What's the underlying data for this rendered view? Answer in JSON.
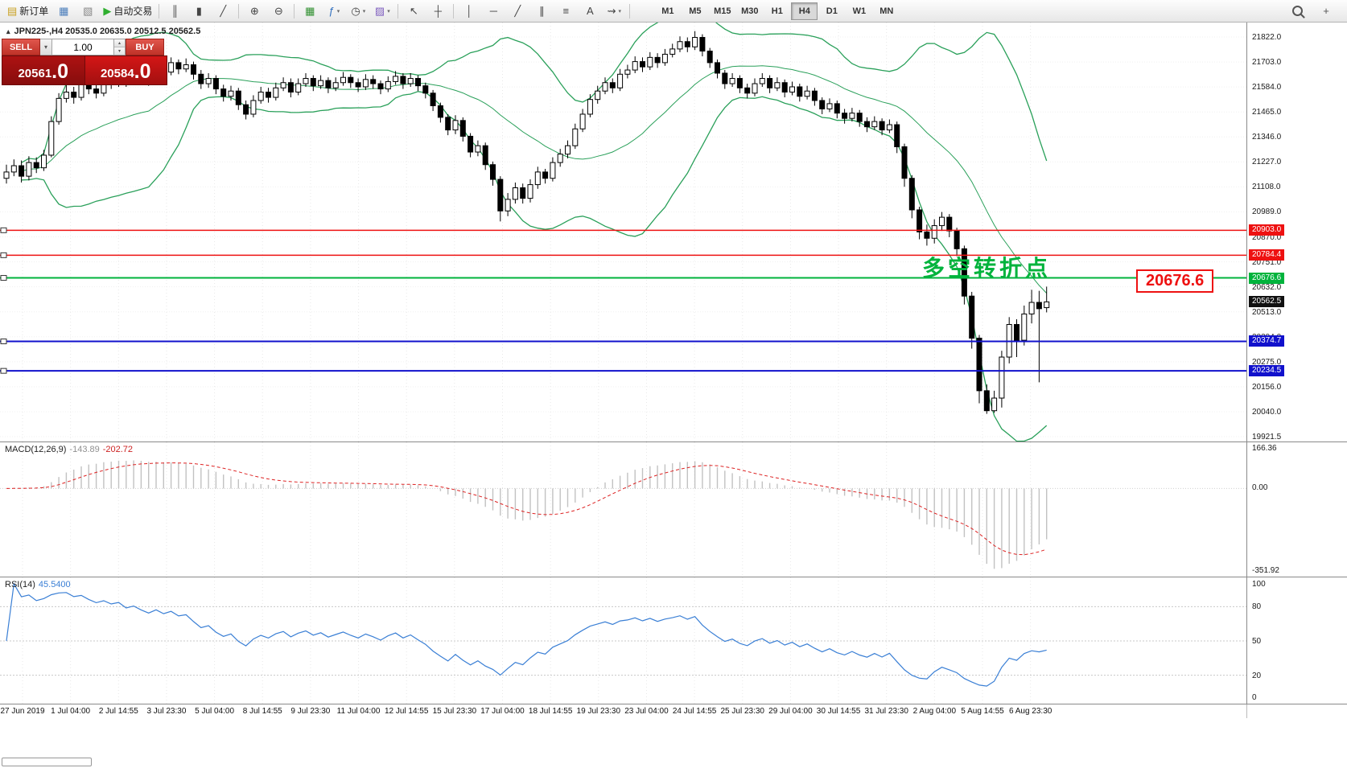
{
  "toolbar": {
    "items": [
      {
        "name": "new-order-button",
        "glyph": "▤",
        "color": "#c8a020",
        "label": "新订单"
      },
      {
        "name": "chart-window-button",
        "glyph": "▦",
        "color": "#4a7dbb"
      },
      {
        "name": "profiles-button",
        "glyph": "▧",
        "color": "#888888"
      },
      {
        "name": "autotrade-button",
        "glyph": "▶",
        "color": "#2faf2f",
        "label": "自动交易"
      },
      {
        "sep": true
      },
      {
        "name": "bar-chart-button",
        "glyph": "║",
        "color": "#444444"
      },
      {
        "name": "candlestick-chart-button",
        "glyph": "▮",
        "color": "#444444"
      },
      {
        "name": "line-chart-button",
        "glyph": "╱",
        "color": "#444444"
      },
      {
        "sep": true
      },
      {
        "name": "zoom-in-button",
        "glyph": "⊕",
        "color": "#444444"
      },
      {
        "name": "zoom-out-button",
        "glyph": "⊖",
        "color": "#444444"
      },
      {
        "sep": true
      },
      {
        "name": "tile-windows-button",
        "glyph": "▦",
        "color": "#2f8f2f"
      },
      {
        "name": "indicators-button",
        "glyph": "ƒ",
        "color": "#2f6fbf",
        "dropdown": true
      },
      {
        "name": "periods-button",
        "glyph": "◷",
        "color": "#444444",
        "dropdown": true
      },
      {
        "name": "templates-button",
        "glyph": "▨",
        "color": "#7f5fbf",
        "dropdown": true
      },
      {
        "sep": true
      },
      {
        "name": "cursor-button",
        "glyph": "↖",
        "color": "#444444"
      },
      {
        "name": "crosshair-button",
        "glyph": "┼",
        "color": "#444444"
      },
      {
        "sep": true
      },
      {
        "name": "vertical-line-button",
        "glyph": "│",
        "color": "#444444"
      },
      {
        "name": "horizontal-line-button",
        "glyph": "─",
        "color": "#444444"
      },
      {
        "name": "trendline-button",
        "glyph": "╱",
        "color": "#444444"
      },
      {
        "name": "channel-button",
        "glyph": "∥",
        "color": "#444444"
      },
      {
        "name": "fibonacci-button",
        "glyph": "≡",
        "color": "#444444"
      },
      {
        "name": "text-button",
        "glyph": "A",
        "color": "#444444"
      },
      {
        "name": "arrows-button",
        "glyph": "⇝",
        "color": "#444444",
        "dropdown": true
      },
      {
        "sep": true
      }
    ],
    "timeframes": [
      "M1",
      "M5",
      "M15",
      "M30",
      "H1",
      "H4",
      "D1",
      "W1",
      "MN"
    ],
    "active_timeframe": "H4",
    "right_items": [
      {
        "name": "search-button",
        "glyph": "MAG"
      },
      {
        "name": "quick-add-button",
        "glyph": "+",
        "color": "#555555"
      }
    ]
  },
  "order_panel": {
    "sell_label": "SELL",
    "buy_label": "BUY",
    "volume": "1.00",
    "sell_price": "20561.0",
    "buy_price": "20584.0",
    "dropdown_icon": "▾",
    "spin_up_icon": "▴",
    "spin_down_icon": "▾"
  },
  "chart": {
    "symbol_icon": "▴",
    "symbol_info": "JPN225-,H4  20535.0 20635.0 20512.5 20562.5",
    "annotation": "多空转折点",
    "annotation_color": "#00b33c",
    "callout": "20676.6",
    "axis_ticks": [
      "21822.0",
      "21703.0",
      "21584.0",
      "21465.0",
      "21346.0",
      "21227.0",
      "21108.0",
      "20989.0",
      "20870.0",
      "20751.0",
      "20632.0",
      "20513.0",
      "20394.0",
      "20275.0",
      "20156.0",
      "20040.0",
      "19921.5"
    ],
    "hlines": [
      {
        "price": 20903.0,
        "color": "#ee1111",
        "label": "20903.0",
        "width": 1.5
      },
      {
        "price": 20784.4,
        "color": "#ee1111",
        "label": "20784.4",
        "width": 1.5
      },
      {
        "price": 20676.6,
        "color": "#00b33c",
        "label": "20676.6",
        "width": 2
      },
      {
        "price": 20374.7,
        "color": "#1111cc",
        "label": "20374.7",
        "width": 2
      },
      {
        "price": 20234.5,
        "color": "#1111cc",
        "label": "20234.5",
        "width": 2
      }
    ],
    "current_price": {
      "value": 20562.5,
      "label": "20562.5",
      "bg": "#111111"
    },
    "time_labels": [
      "27 Jun 2019",
      "1 Jul 04:00",
      "2 Jul 14:55",
      "3 Jul 23:30",
      "5 Jul 04:00",
      "8 Jul 14:55",
      "9 Jul 23:30",
      "11 Jul 04:00",
      "12 Jul 14:55",
      "15 Jul 23:30",
      "17 Jul 04:00",
      "18 Jul 14:55",
      "19 Jul 23:30",
      "23 Jul 04:00",
      "24 Jul 14:55",
      "25 Jul 23:30",
      "29 Jul 04:00",
      "30 Jul 14:55",
      "31 Jul 23:30",
      "2 Aug 04:00",
      "5 Aug 14:55",
      "6 Aug 23:30"
    ]
  },
  "macd": {
    "name": "MACD(12,26,9)",
    "main": "-143.89",
    "signal": "-202.72",
    "axis": [
      "166.36",
      "0.00",
      "-351.92"
    ],
    "range": [
      166.36,
      -351.92
    ]
  },
  "rsi": {
    "name": "RSI(14)",
    "value": "45.5400",
    "axis": [
      "100",
      "80",
      "50",
      "20",
      "0"
    ],
    "levels": [
      80,
      50,
      20
    ]
  },
  "chart_data": {
    "type": "candlestick",
    "symbol": "JPN225-",
    "timeframe": "H4",
    "title": "JPN225-,H4",
    "y_range": [
      19921.5,
      21822.0
    ],
    "indicators": {
      "bollinger": {
        "period": 20,
        "deviation": 2
      },
      "macd": [
        12,
        26,
        9
      ],
      "rsi": 14
    },
    "ohlc_format": [
      "open",
      "high",
      "low",
      "close"
    ],
    "ohlc": [
      [
        21150,
        21215,
        21125,
        21180
      ],
      [
        21180,
        21240,
        21160,
        21210
      ],
      [
        21210,
        21235,
        21130,
        21160
      ],
      [
        21160,
        21255,
        21140,
        21225
      ],
      [
        21225,
        21250,
        21175,
        21200
      ],
      [
        21200,
        21285,
        21185,
        21260
      ],
      [
        21260,
        21445,
        21250,
        21420
      ],
      [
        21420,
        21555,
        21405,
        21530
      ],
      [
        21530,
        21595,
        21510,
        21560
      ],
      [
        21560,
        21585,
        21505,
        21535
      ],
      [
        21535,
        21625,
        21520,
        21600
      ],
      [
        21600,
        21620,
        21550,
        21575
      ],
      [
        21575,
        21600,
        21530,
        21555
      ],
      [
        21555,
        21645,
        21540,
        21620
      ],
      [
        21620,
        21640,
        21575,
        21600
      ],
      [
        21600,
        21670,
        21585,
        21645
      ],
      [
        21645,
        21660,
        21585,
        21610
      ],
      [
        21610,
        21685,
        21595,
        21660
      ],
      [
        21660,
        21680,
        21610,
        21635
      ],
      [
        21635,
        21655,
        21590,
        21615
      ],
      [
        21615,
        21705,
        21600,
        21680
      ],
      [
        21680,
        21700,
        21630,
        21655
      ],
      [
        21655,
        21725,
        21640,
        21700
      ],
      [
        21700,
        21715,
        21645,
        21670
      ],
      [
        21670,
        21720,
        21655,
        21690
      ],
      [
        21690,
        21705,
        21620,
        21645
      ],
      [
        21645,
        21665,
        21575,
        21600
      ],
      [
        21600,
        21650,
        21580,
        21625
      ],
      [
        21625,
        21640,
        21550,
        21575
      ],
      [
        21575,
        21595,
        21515,
        21540
      ],
      [
        21540,
        21590,
        21520,
        21565
      ],
      [
        21565,
        21580,
        21475,
        21500
      ],
      [
        21500,
        21520,
        21430,
        21455
      ],
      [
        21455,
        21545,
        21440,
        21520
      ],
      [
        21520,
        21585,
        21505,
        21560
      ],
      [
        21560,
        21580,
        21510,
        21535
      ],
      [
        21535,
        21605,
        21520,
        21580
      ],
      [
        21580,
        21630,
        21565,
        21605
      ],
      [
        21605,
        21625,
        21535,
        21560
      ],
      [
        21560,
        21625,
        21545,
        21600
      ],
      [
        21600,
        21650,
        21585,
        21625
      ],
      [
        21625,
        21640,
        21565,
        21590
      ],
      [
        21590,
        21640,
        21575,
        21615
      ],
      [
        21615,
        21630,
        21555,
        21580
      ],
      [
        21580,
        21630,
        21565,
        21605
      ],
      [
        21605,
        21655,
        21590,
        21630
      ],
      [
        21630,
        21645,
        21580,
        21605
      ],
      [
        21605,
        21625,
        21560,
        21585
      ],
      [
        21585,
        21645,
        21570,
        21620
      ],
      [
        21620,
        21640,
        21575,
        21600
      ],
      [
        21600,
        21615,
        21550,
        21575
      ],
      [
        21575,
        21635,
        21560,
        21610
      ],
      [
        21610,
        21660,
        21595,
        21635
      ],
      [
        21635,
        21650,
        21575,
        21600
      ],
      [
        21600,
        21650,
        21585,
        21625
      ],
      [
        21625,
        21640,
        21565,
        21590
      ],
      [
        21590,
        21605,
        21530,
        21555
      ],
      [
        21555,
        21570,
        21470,
        21495
      ],
      [
        21495,
        21510,
        21415,
        21440
      ],
      [
        21440,
        21455,
        21355,
        21380
      ],
      [
        21380,
        21450,
        21360,
        21425
      ],
      [
        21425,
        21440,
        21325,
        21350
      ],
      [
        21350,
        21365,
        21250,
        21275
      ],
      [
        21275,
        21330,
        21255,
        21305
      ],
      [
        21305,
        21320,
        21190,
        21215
      ],
      [
        21215,
        21230,
        21115,
        21145
      ],
      [
        21145,
        21160,
        20945,
        20995
      ],
      [
        20995,
        21080,
        20970,
        21050
      ],
      [
        21050,
        21130,
        21030,
        21105
      ],
      [
        21105,
        21125,
        21030,
        21055
      ],
      [
        21055,
        21145,
        21035,
        21120
      ],
      [
        21120,
        21205,
        21100,
        21180
      ],
      [
        21180,
        21195,
        21125,
        21150
      ],
      [
        21150,
        21250,
        21135,
        21225
      ],
      [
        21225,
        21290,
        21205,
        21265
      ],
      [
        21265,
        21330,
        21245,
        21305
      ],
      [
        21305,
        21410,
        21290,
        21385
      ],
      [
        21385,
        21480,
        21370,
        21455
      ],
      [
        21455,
        21550,
        21440,
        21525
      ],
      [
        21525,
        21590,
        21505,
        21565
      ],
      [
        21565,
        21630,
        21550,
        21605
      ],
      [
        21605,
        21625,
        21555,
        21580
      ],
      [
        21580,
        21670,
        21565,
        21645
      ],
      [
        21645,
        21690,
        21625,
        21665
      ],
      [
        21665,
        21730,
        21650,
        21705
      ],
      [
        21705,
        21725,
        21655,
        21680
      ],
      [
        21680,
        21750,
        21665,
        21725
      ],
      [
        21725,
        21745,
        21675,
        21700
      ],
      [
        21700,
        21765,
        21685,
        21740
      ],
      [
        21740,
        21790,
        21725,
        21765
      ],
      [
        21765,
        21825,
        21750,
        21800
      ],
      [
        21800,
        21820,
        21750,
        21775
      ],
      [
        21775,
        21850,
        21760,
        21820
      ],
      [
        21820,
        21835,
        21730,
        21755
      ],
      [
        21755,
        21770,
        21675,
        21700
      ],
      [
        21700,
        21715,
        21625,
        21650
      ],
      [
        21650,
        21665,
        21575,
        21600
      ],
      [
        21600,
        21650,
        21585,
        21625
      ],
      [
        21625,
        21640,
        21555,
        21580
      ],
      [
        21580,
        21600,
        21530,
        21555
      ],
      [
        21555,
        21625,
        21540,
        21600
      ],
      [
        21600,
        21650,
        21585,
        21625
      ],
      [
        21625,
        21640,
        21555,
        21580
      ],
      [
        21580,
        21630,
        21565,
        21605
      ],
      [
        21605,
        21620,
        21535,
        21560
      ],
      [
        21560,
        21610,
        21545,
        21585
      ],
      [
        21585,
        21600,
        21515,
        21540
      ],
      [
        21540,
        21590,
        21525,
        21565
      ],
      [
        21565,
        21580,
        21495,
        21520
      ],
      [
        21520,
        21535,
        21455,
        21480
      ],
      [
        21480,
        21530,
        21465,
        21505
      ],
      [
        21505,
        21520,
        21435,
        21460
      ],
      [
        21460,
        21480,
        21410,
        21435
      ],
      [
        21435,
        21485,
        21420,
        21460
      ],
      [
        21460,
        21475,
        21395,
        21420
      ],
      [
        21420,
        21440,
        21370,
        21395
      ],
      [
        21395,
        21445,
        21380,
        21420
      ],
      [
        21420,
        21435,
        21355,
        21380
      ],
      [
        21380,
        21430,
        21365,
        21405
      ],
      [
        21405,
        21420,
        21270,
        21300
      ],
      [
        21300,
        21315,
        21110,
        21150
      ],
      [
        21150,
        21165,
        20960,
        21000
      ],
      [
        21000,
        21015,
        20860,
        20895
      ],
      [
        20895,
        20930,
        20830,
        20865
      ],
      [
        20865,
        20955,
        20840,
        20925
      ],
      [
        20925,
        20990,
        20900,
        20965
      ],
      [
        20965,
        20980,
        20870,
        20900
      ],
      [
        20900,
        20915,
        20780,
        20815
      ],
      [
        20815,
        20830,
        20550,
        20590
      ],
      [
        20590,
        20610,
        20340,
        20390
      ],
      [
        20390,
        20405,
        20080,
        20140
      ],
      [
        20140,
        20170,
        20030,
        20045
      ],
      [
        20045,
        20140,
        20035,
        20105
      ],
      [
        20105,
        20330,
        20060,
        20300
      ],
      [
        20300,
        20490,
        20270,
        20455
      ],
      [
        20455,
        20480,
        20300,
        20380
      ],
      [
        20380,
        20545,
        20355,
        20505
      ],
      [
        20505,
        20620,
        20460,
        20560
      ],
      [
        20560,
        20615,
        20180,
        20530
      ],
      [
        20535,
        20635,
        20512.5,
        20562.5
      ]
    ]
  }
}
